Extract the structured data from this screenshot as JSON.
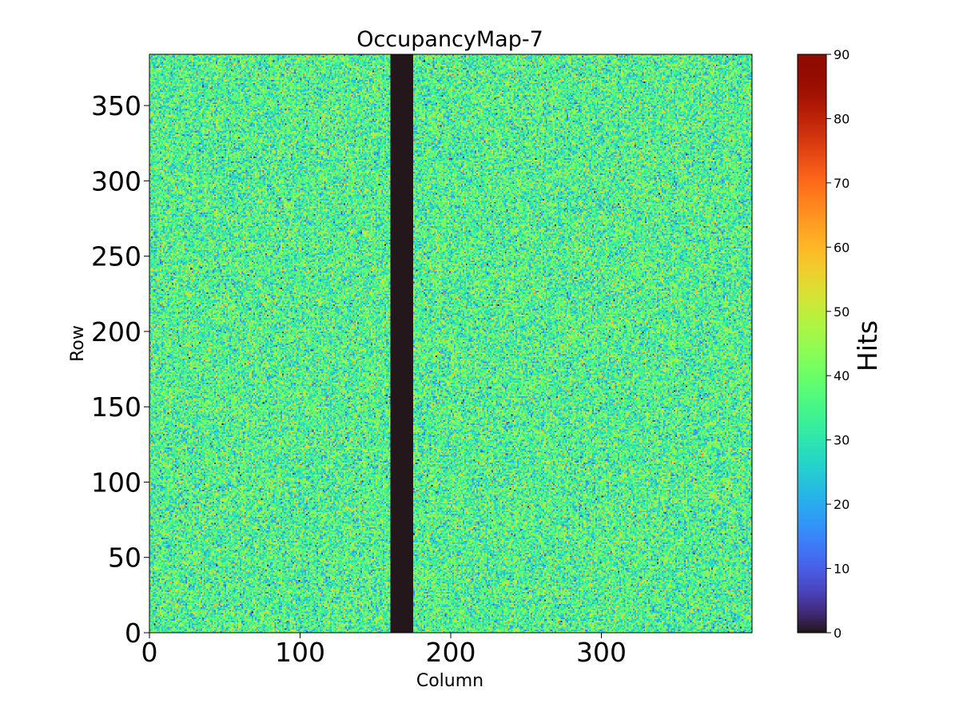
{
  "chart_data": {
    "type": "heatmap",
    "title": "OccupancyMap-7",
    "xlabel": "Column",
    "ylabel": "Row",
    "colorbar_label": "Hits",
    "colormap": "turbo",
    "xlim": [
      0,
      400
    ],
    "ylim": [
      0,
      384
    ],
    "clim": [
      0,
      90
    ],
    "xticks": [
      0,
      100,
      200,
      300
    ],
    "xtick_labels": [
      "0",
      "100",
      "200",
      "300"
    ],
    "yticks": [
      0,
      50,
      100,
      150,
      200,
      250,
      300,
      350
    ],
    "ytick_labels": [
      "0",
      "50",
      "100",
      "150",
      "200",
      "250",
      "300",
      "350"
    ],
    "cticks": [
      0,
      10,
      20,
      30,
      40,
      50,
      60,
      70,
      80,
      90
    ],
    "ctick_labels": [
      "0",
      "10",
      "20",
      "30",
      "40",
      "50",
      "60",
      "70",
      "80",
      "90"
    ],
    "n_columns": 400,
    "n_rows": 384,
    "typical_hits": 35,
    "hits_spread": 10,
    "dead_columns": [
      160,
      175
    ],
    "dead_value": 0
  }
}
